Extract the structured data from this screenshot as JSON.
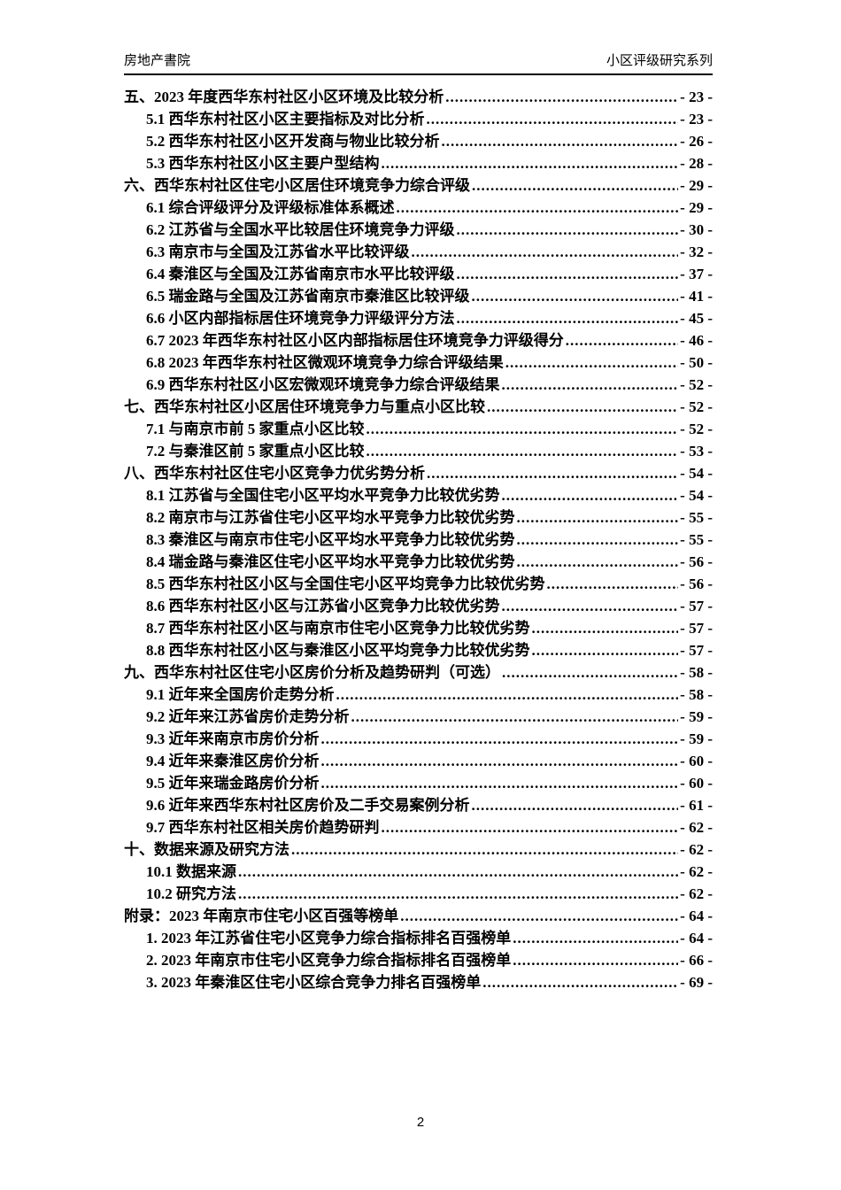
{
  "colors": {
    "text": "#000000",
    "background": "#ffffff"
  },
  "header": {
    "left": "房地产書院",
    "right": "小区评级研究系列"
  },
  "toc": {
    "entries": [
      {
        "level": 0,
        "label": "五、2023 年度西华东村社区小区环境及比较分析",
        "page_label": "- 23 -"
      },
      {
        "level": 1,
        "label": "5.1 西华东村社区小区主要指标及对比分析",
        "page_label": "- 23 -"
      },
      {
        "level": 1,
        "label": "5.2 西华东村社区小区开发商与物业比较分析",
        "page_label": "- 26 -"
      },
      {
        "level": 1,
        "label": "5.3 西华东村社区小区主要户型结构",
        "page_label": "- 28 -"
      },
      {
        "level": 0,
        "label": "六、西华东村社区住宅小区居住环境竞争力综合评级",
        "page_label": "- 29 -"
      },
      {
        "level": 1,
        "label": "6.1 综合评级评分及评级标准体系概述",
        "page_label": "- 29 -"
      },
      {
        "level": 1,
        "label": "6.2 江苏省与全国水平比较居住环境竞争力评级",
        "page_label": "- 30 -"
      },
      {
        "level": 1,
        "label": "6.3 南京市与全国及江苏省水平比较评级",
        "page_label": "- 32 -"
      },
      {
        "level": 1,
        "label": "6.4 秦淮区与全国及江苏省南京市水平比较评级",
        "page_label": "- 37 -"
      },
      {
        "level": 1,
        "label": "6.5 瑞金路与全国及江苏省南京市秦淮区比较评级",
        "page_label": "- 41 -"
      },
      {
        "level": 1,
        "label": "6.6 小区内部指标居住环境竞争力评级评分方法",
        "page_label": "- 45 -"
      },
      {
        "level": 1,
        "label": "6.7 2023 年西华东村社区小区内部指标居住环境竞争力评级得分",
        "page_label": "- 46 -"
      },
      {
        "level": 1,
        "label": "6.8 2023 年西华东村社区微观环境竞争力综合评级结果",
        "page_label": "- 50 -"
      },
      {
        "level": 1,
        "label": "6.9 西华东村社区小区宏微观环境竞争力综合评级结果",
        "page_label": "- 52 -"
      },
      {
        "level": 0,
        "label": "七、西华东村社区小区居住环境竞争力与重点小区比较",
        "page_label": "- 52 -"
      },
      {
        "level": 1,
        "label": "7.1 与南京市前 5 家重点小区比较",
        "page_label": "- 52 -"
      },
      {
        "level": 1,
        "label": "7.2 与秦淮区前 5 家重点小区比较",
        "page_label": "- 53 -"
      },
      {
        "level": 0,
        "label": "八、西华东村社区住宅小区竞争力优劣势分析",
        "page_label": "- 54 -"
      },
      {
        "level": 1,
        "label": "8.1 江苏省与全国住宅小区平均水平竞争力比较优劣势",
        "page_label": "- 54 -"
      },
      {
        "level": 1,
        "label": "8.2 南京市与江苏省住宅小区平均水平竞争力比较优劣势",
        "page_label": "- 55 -"
      },
      {
        "level": 1,
        "label": "8.3 秦淮区与南京市住宅小区平均水平竞争力比较优劣势",
        "page_label": "- 55 -"
      },
      {
        "level": 1,
        "label": "8.4 瑞金路与秦淮区住宅小区平均水平竞争力比较优劣势",
        "page_label": "- 56 -"
      },
      {
        "level": 1,
        "label": "8.5 西华东村社区小区与全国住宅小区平均竞争力比较优劣势",
        "page_label": "- 56 -"
      },
      {
        "level": 1,
        "label": "8.6 西华东村社区小区与江苏省小区竞争力比较优劣势",
        "page_label": "- 57 -"
      },
      {
        "level": 1,
        "label": "8.7 西华东村社区小区与南京市住宅小区竞争力比较优劣势",
        "page_label": "- 57 -"
      },
      {
        "level": 1,
        "label": "8.8 西华东村社区小区与秦淮区小区平均竞争力比较优劣势",
        "page_label": "- 57 -"
      },
      {
        "level": 0,
        "label": "九、西华东村社区住宅小区房价分析及趋势研判（可选）",
        "page_label": "- 58 -"
      },
      {
        "level": 1,
        "label": "9.1 近年来全国房价走势分析",
        "page_label": "- 58 -"
      },
      {
        "level": 1,
        "label": "9.2 近年来江苏省房价走势分析",
        "page_label": "- 59 -"
      },
      {
        "level": 1,
        "label": "9.3 近年来南京市房价分析",
        "page_label": "- 59 -"
      },
      {
        "level": 1,
        "label": "9.4 近年来秦淮区房价分析",
        "page_label": "- 60 -"
      },
      {
        "level": 1,
        "label": "9.5 近年来瑞金路房价分析",
        "page_label": "- 60 -"
      },
      {
        "level": 1,
        "label": "9.6 近年来西华东村社区房价及二手交易案例分析",
        "page_label": "- 61 -"
      },
      {
        "level": 1,
        "label": "9.7 西华东村社区相关房价趋势研判",
        "page_label": "- 62 -"
      },
      {
        "level": 0,
        "label": "十、数据来源及研究方法",
        "page_label": "- 62 -"
      },
      {
        "level": 1,
        "label": "10.1 数据来源",
        "page_label": "- 62 -"
      },
      {
        "level": 1,
        "label": "10.2 研究方法",
        "page_label": "- 62 -"
      },
      {
        "level": 0,
        "label": "附录：2023 年南京市住宅小区百强等榜单",
        "page_label": "- 64 -"
      },
      {
        "level": 1,
        "label": "1. 2023 年江苏省住宅小区竞争力综合指标排名百强榜单",
        "page_label": "- 64 -"
      },
      {
        "level": 1,
        "label": "2. 2023 年南京市住宅小区竞争力综合指标排名百强榜单",
        "page_label": "- 66 -"
      },
      {
        "level": 1,
        "label": "3. 2023 年秦淮区住宅小区综合竞争力排名百强榜单",
        "page_label": "- 69 -"
      }
    ]
  },
  "footer": {
    "page_number": "2"
  }
}
